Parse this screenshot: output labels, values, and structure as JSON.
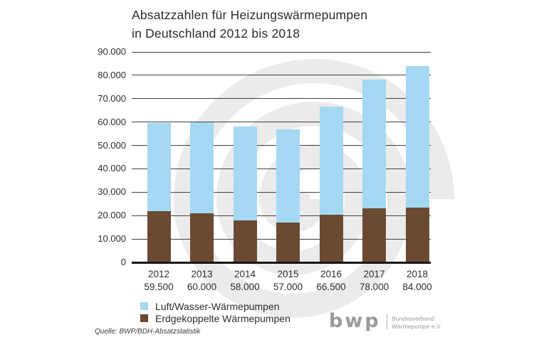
{
  "title": {
    "line1": "Absatzzahlen für Heizungswärmepumpen",
    "line2": "in Deutschland 2012 bis 2018"
  },
  "chart_data": {
    "type": "bar",
    "stacked": true,
    "title": "Absatzzahlen für Heizungswärmepumpen in Deutschland 2012 bis 2018",
    "categories": [
      "2012",
      "2013",
      "2014",
      "2015",
      "2016",
      "2017",
      "2018"
    ],
    "totals": [
      59500,
      60000,
      58000,
      57000,
      66500,
      78000,
      84000
    ],
    "totals_labels": [
      "59.500",
      "60.000",
      "58.000",
      "57.000",
      "66.500",
      "78.000",
      "84.000"
    ],
    "series": [
      {
        "name": "Luft/Wasser-Wärmepumpen",
        "color": "#a5d8f2",
        "values": [
          37500,
          39000,
          40000,
          40000,
          46000,
          55000,
          60500
        ]
      },
      {
        "name": "Erdgekoppelte Wärmepumpen",
        "color": "#6b4a33",
        "values": [
          22000,
          21000,
          18000,
          17000,
          20500,
          23000,
          23500
        ]
      }
    ],
    "stack_bottom_index": 1,
    "ylim": [
      0,
      90000
    ],
    "ytick_step": 10000,
    "ytick_labels": [
      "0",
      "10.000",
      "20.000",
      "30.000",
      "40.000",
      "50.000",
      "60.000",
      "70.000",
      "80.000",
      "90.000"
    ],
    "grid": true,
    "gridline_color": "#3f3f3f",
    "legend_position": "bottom-left"
  },
  "legend": {
    "items": [
      {
        "label": "Luft/Wasser-Wärmepumpen",
        "color": "#a5d8f2"
      },
      {
        "label": "Erdgekoppelte Wärmepumpen",
        "color": "#6b4a33"
      }
    ]
  },
  "source": {
    "text": "Quelle: BWP/BDH-Absatzstatistik"
  },
  "logo": {
    "word": "bwp",
    "org_line1": "Bundesverband",
    "org_line2": "Wärmepumpe e.V."
  },
  "colors": {
    "air_water_blue": "#a5d8f2",
    "ground_brown": "#6b4a33",
    "watermark_gray": "#ebebeb",
    "logo_gray": "#9a9a9a",
    "text": "#2d2d2d"
  }
}
